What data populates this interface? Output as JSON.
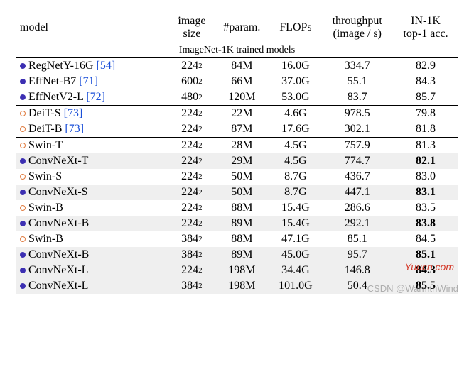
{
  "columns": [
    "model",
    "image\nsize",
    "#param.",
    "FLOPs",
    "throughput\n(image / s)",
    "IN-1K\ntop-1 acc."
  ],
  "section_title": "ImageNet-1K trained models",
  "section_title_fontsize": 14,
  "colors": {
    "bullet_purple": "#3c2fb2",
    "bullet_orange": "#e07b3f",
    "cite_blue": "#1a4fd8",
    "shade_bg": "#efefef",
    "rule": "#000000",
    "watermark_red": "#d43a2a",
    "watermark_gray": "rgba(120,120,120,0.55)"
  },
  "typography": {
    "body_font": "Times New Roman",
    "body_fontsize": 16,
    "sup_fontsize": 11
  },
  "rows": [
    {
      "bullet": "closed",
      "bullet_color": "#3c2fb2",
      "name": "RegNetY-16G",
      "cite": "[54]",
      "img_base": "224",
      "img_exp": "2",
      "param": "84M",
      "flops": "16.0G",
      "tp": "334.7",
      "acc": "82.9",
      "acc_bold": false,
      "shade": false,
      "rule": "mid"
    },
    {
      "bullet": "closed",
      "bullet_color": "#3c2fb2",
      "name": "EffNet-B7",
      "cite": "[71]",
      "img_base": "600",
      "img_exp": "2",
      "param": "66M",
      "flops": "37.0G",
      "tp": "55.1",
      "acc": "84.3",
      "acc_bold": false,
      "shade": false,
      "rule": ""
    },
    {
      "bullet": "closed",
      "bullet_color": "#3c2fb2",
      "name": "EffNetV2-L",
      "cite": "[72]",
      "img_base": "480",
      "img_exp": "2",
      "param": "120M",
      "flops": "53.0G",
      "tp": "83.7",
      "acc": "85.7",
      "acc_bold": false,
      "shade": false,
      "rule": ""
    },
    {
      "bullet": "open",
      "bullet_color": "#e07b3f",
      "name": "DeiT-S",
      "cite": "[73]",
      "img_base": "224",
      "img_exp": "2",
      "param": "22M",
      "flops": "4.6G",
      "tp": "978.5",
      "acc": "79.8",
      "acc_bold": false,
      "shade": false,
      "rule": "mid"
    },
    {
      "bullet": "open",
      "bullet_color": "#e07b3f",
      "name": "DeiT-B",
      "cite": "[73]",
      "img_base": "224",
      "img_exp": "2",
      "param": "87M",
      "flops": "17.6G",
      "tp": "302.1",
      "acc": "81.8",
      "acc_bold": false,
      "shade": false,
      "rule": ""
    },
    {
      "bullet": "open",
      "bullet_color": "#e07b3f",
      "name": "Swin-T",
      "cite": "",
      "img_base": "224",
      "img_exp": "2",
      "param": "28M",
      "flops": "4.5G",
      "tp": "757.9",
      "acc": "81.3",
      "acc_bold": false,
      "shade": false,
      "rule": "mid"
    },
    {
      "bullet": "closed",
      "bullet_color": "#3c2fb2",
      "name": "ConvNeXt-T",
      "cite": "",
      "img_base": "224",
      "img_exp": "2",
      "param": "29M",
      "flops": "4.5G",
      "tp": "774.7",
      "acc": "82.1",
      "acc_bold": true,
      "shade": true,
      "rule": ""
    },
    {
      "bullet": "open",
      "bullet_color": "#e07b3f",
      "name": "Swin-S",
      "cite": "",
      "img_base": "224",
      "img_exp": "2",
      "param": "50M",
      "flops": "8.7G",
      "tp": "436.7",
      "acc": "83.0",
      "acc_bold": false,
      "shade": false,
      "rule": ""
    },
    {
      "bullet": "closed",
      "bullet_color": "#3c2fb2",
      "name": "ConvNeXt-S",
      "cite": "",
      "img_base": "224",
      "img_exp": "2",
      "param": "50M",
      "flops": "8.7G",
      "tp": "447.1",
      "acc": "83.1",
      "acc_bold": true,
      "shade": true,
      "rule": ""
    },
    {
      "bullet": "open",
      "bullet_color": "#e07b3f",
      "name": "Swin-B",
      "cite": "",
      "img_base": "224",
      "img_exp": "2",
      "param": "88M",
      "flops": "15.4G",
      "tp": "286.6",
      "acc": "83.5",
      "acc_bold": false,
      "shade": false,
      "rule": ""
    },
    {
      "bullet": "closed",
      "bullet_color": "#3c2fb2",
      "name": "ConvNeXt-B",
      "cite": "",
      "img_base": "224",
      "img_exp": "2",
      "param": "89M",
      "flops": "15.4G",
      "tp": "292.1",
      "acc": "83.8",
      "acc_bold": true,
      "shade": true,
      "rule": ""
    },
    {
      "bullet": "open",
      "bullet_color": "#e07b3f",
      "name": "Swin-B",
      "cite": "",
      "img_base": "384",
      "img_exp": "2",
      "param": "88M",
      "flops": "47.1G",
      "tp": "85.1",
      "acc": "84.5",
      "acc_bold": false,
      "shade": false,
      "rule": ""
    },
    {
      "bullet": "closed",
      "bullet_color": "#3c2fb2",
      "name": "ConvNeXt-B",
      "cite": "",
      "img_base": "384",
      "img_exp": "2",
      "param": "89M",
      "flops": "45.0G",
      "tp": "95.7",
      "acc": "85.1",
      "acc_bold": true,
      "shade": true,
      "rule": ""
    },
    {
      "bullet": "closed",
      "bullet_color": "#3c2fb2",
      "name": "ConvNeXt-L",
      "cite": "",
      "img_base": "224",
      "img_exp": "2",
      "param": "198M",
      "flops": "34.4G",
      "tp": "146.8",
      "acc": "84.3",
      "acc_bold": true,
      "shade": true,
      "rule": ""
    },
    {
      "bullet": "closed",
      "bullet_color": "#3c2fb2",
      "name": "ConvNeXt-L",
      "cite": "",
      "img_base": "384",
      "img_exp": "2",
      "param": "198M",
      "flops": "101.0G",
      "tp": "50.4",
      "acc": "85.5",
      "acc_bold": true,
      "shade": true,
      "rule": ""
    }
  ],
  "watermarks": {
    "w1": "Yuucn.com",
    "w2": "CSDN @WarmthWind"
  }
}
